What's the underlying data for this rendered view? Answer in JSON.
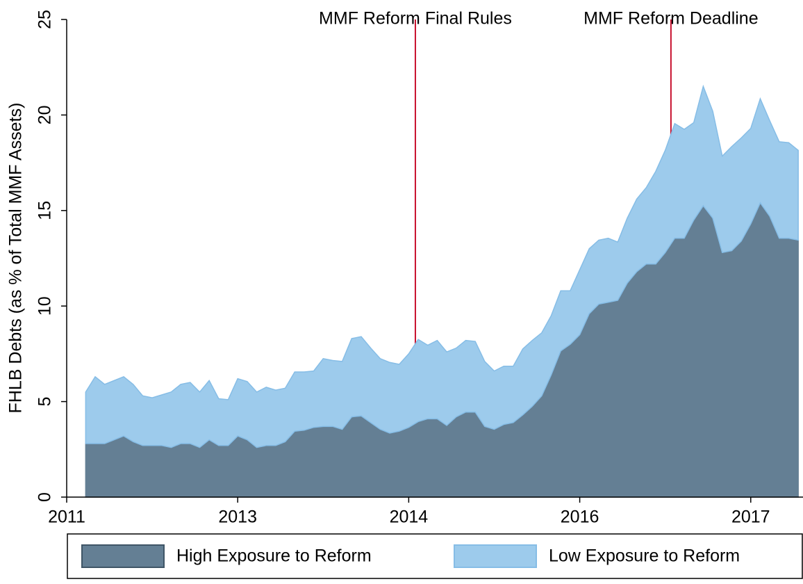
{
  "chart_data": {
    "type": "stacked_area",
    "y_label": "FHLB Debts (as % of Total MMF Assets)",
    "x": [
      2,
      3,
      4,
      5,
      6,
      7,
      8,
      9,
      10,
      11,
      12,
      13,
      14,
      15,
      16,
      17,
      18,
      19,
      20,
      21,
      22,
      23,
      24,
      25,
      26,
      27,
      28,
      29,
      30,
      31,
      32,
      33,
      34,
      35,
      36,
      37,
      38,
      39,
      40,
      41,
      42,
      43,
      44,
      45,
      46,
      47,
      48,
      49,
      50,
      51,
      52,
      53,
      54,
      55,
      56,
      57,
      58,
      59,
      60,
      61,
      62,
      63,
      64,
      65,
      66,
      67,
      68,
      69,
      70,
      71,
      72,
      73,
      74,
      75,
      76,
      77
    ],
    "series": [
      {
        "name": "High Exposure to Reform",
        "color": "#647f94",
        "line_color": "#647f94",
        "values": [
          2.8,
          2.8,
          2.8,
          3.0,
          3.2,
          2.9,
          2.7,
          2.7,
          2.7,
          2.6,
          2.8,
          2.8,
          2.6,
          3.0,
          2.7,
          2.7,
          3.2,
          3.0,
          2.6,
          2.7,
          2.7,
          2.9,
          3.45,
          3.5,
          3.65,
          3.7,
          3.7,
          3.55,
          4.2,
          4.25,
          3.9,
          3.55,
          3.35,
          3.45,
          3.65,
          3.95,
          4.1,
          4.1,
          3.75,
          4.2,
          4.45,
          4.45,
          3.7,
          3.55,
          3.8,
          3.9,
          4.3,
          4.75,
          5.3,
          6.4,
          7.65,
          8.0,
          8.5,
          9.6,
          10.1,
          10.2,
          10.3,
          11.2,
          11.8,
          12.2,
          12.2,
          12.8,
          13.55,
          13.55,
          14.5,
          15.25,
          14.6,
          12.8,
          12.9,
          13.4,
          14.3,
          15.4,
          14.7,
          13.55,
          13.55,
          13.45
        ]
      },
      {
        "name": "Low Exposure to Reform",
        "color": "#9dcbec",
        "line_color": "#86bde6",
        "values": [
          2.7,
          3.5,
          3.1,
          3.1,
          3.1,
          3.0,
          2.6,
          2.5,
          2.65,
          2.9,
          3.1,
          3.2,
          2.9,
          3.1,
          2.45,
          2.4,
          3.0,
          3.05,
          2.9,
          3.05,
          2.9,
          2.8,
          3.1,
          3.05,
          2.95,
          3.55,
          3.45,
          3.55,
          4.1,
          4.15,
          3.9,
          3.7,
          3.7,
          3.5,
          3.85,
          4.3,
          3.85,
          4.1,
          3.85,
          3.6,
          3.75,
          3.7,
          3.4,
          3.05,
          3.05,
          2.95,
          3.45,
          3.45,
          3.3,
          3.1,
          3.15,
          2.8,
          3.4,
          3.4,
          3.35,
          3.35,
          3.05,
          3.4,
          3.8,
          4.0,
          4.85,
          5.35,
          6.0,
          5.7,
          5.1,
          6.25,
          5.6,
          5.05,
          5.45,
          5.4,
          5.0,
          5.45,
          5.0,
          5.05,
          5.0,
          4.7
        ]
      }
    ],
    "xlim": [
      0,
      77.5
    ],
    "xticks": [
      {
        "value": 0,
        "label": "2011"
      },
      {
        "value": 18,
        "label": "2013"
      },
      {
        "value": 36,
        "label": "2014"
      },
      {
        "value": 54,
        "label": "2016"
      },
      {
        "value": 72,
        "label": "2017"
      }
    ],
    "ylim": [
      0,
      25
    ],
    "yticks": [
      0,
      5,
      10,
      15,
      20,
      25
    ],
    "annotations": [
      {
        "label": "MMF Reform Final Rules",
        "x": 36.7,
        "color": "#c8102e"
      },
      {
        "label": "MMF Reform Deadline",
        "x": 63.6,
        "color": "#c8102e"
      }
    ],
    "legend": "bottom"
  }
}
